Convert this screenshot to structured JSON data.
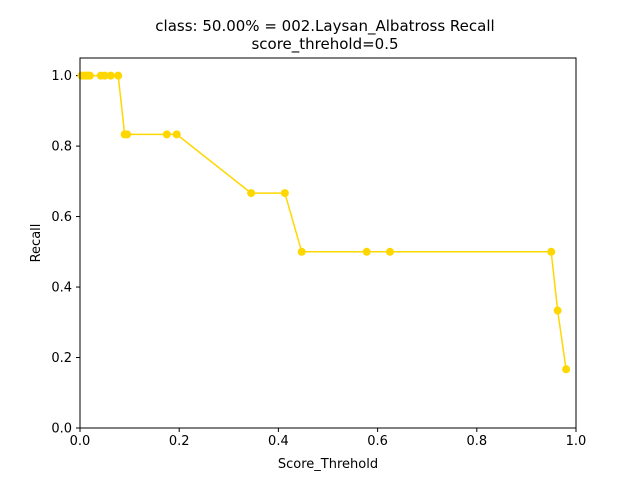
{
  "chart_data": {
    "type": "line",
    "title": "class: 50.00% = 002.Laysan_Albatross Recall",
    "subtitle": "score_threhold=0.5",
    "xlabel": "Score_Threhold",
    "ylabel": "Recall",
    "xlim": [
      0.0,
      1.0
    ],
    "ylim": [
      0.0,
      1.05
    ],
    "xticks": [
      0.0,
      0.2,
      0.4,
      0.6,
      0.8,
      1.0
    ],
    "xtick_labels": [
      "0.0",
      "0.2",
      "0.4",
      "0.6",
      "0.8",
      "1.0"
    ],
    "yticks": [
      0.0,
      0.2,
      0.4,
      0.6,
      0.8,
      1.0
    ],
    "ytick_labels": [
      "0.0",
      "0.2",
      "0.4",
      "0.6",
      "0.8",
      "1.0"
    ],
    "grid": false,
    "series": [
      {
        "name": "Recall",
        "color": "#FFD700",
        "marker": "circle",
        "x": [
          0.003,
          0.008,
          0.012,
          0.016,
          0.02,
          0.042,
          0.05,
          0.062,
          0.077,
          0.09,
          0.095,
          0.175,
          0.195,
          0.345,
          0.413,
          0.447,
          0.578,
          0.625,
          0.95,
          0.963,
          0.98
        ],
        "y": [
          1.0,
          1.0,
          1.0,
          1.0,
          1.0,
          1.0,
          1.0,
          1.0,
          1.0,
          0.8333,
          0.8333,
          0.8333,
          0.8333,
          0.6667,
          0.6667,
          0.5,
          0.5,
          0.5,
          0.5,
          0.3333,
          0.1667
        ]
      }
    ]
  }
}
